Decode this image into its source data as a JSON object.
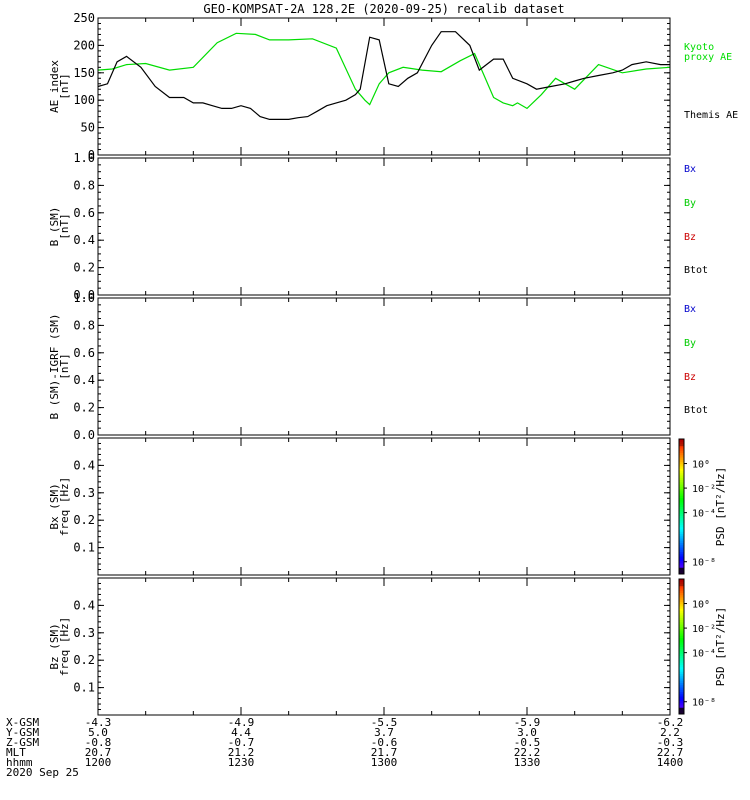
{
  "title": "GEO-KOMPSAT-2A 128.2E (2020-09-25) recalib dataset",
  "colors": {
    "bx": "#0000cc",
    "by": "#00cc00",
    "bz": "#cc0000",
    "btot": "#000000",
    "kyoto": "#00dd00",
    "themis": "#000000"
  },
  "chart_data": [
    {
      "type": "line",
      "ylabel": [
        "AE index",
        "[nT]"
      ],
      "ylim": [
        0,
        250
      ],
      "yticks": [
        0,
        50,
        100,
        150,
        200,
        250
      ],
      "ytick_labels": [
        "0",
        "50",
        "100",
        "150",
        "200",
        "250"
      ],
      "xlim": [
        "12:00",
        "14:00"
      ],
      "legend": [
        "Kyoto",
        "proxy AE",
        "Themis AE"
      ],
      "series": [
        {
          "name": "Kyoto",
          "color": "#00dd00",
          "x": [
            "12:00",
            "12:03",
            "12:06",
            "12:10",
            "12:15",
            "12:20",
            "12:25",
            "12:29",
            "12:33",
            "12:36",
            "12:40",
            "12:45",
            "12:50",
            "12:54",
            "12:56",
            "12:57",
            "12:59",
            "13:01",
            "13:04",
            "13:08",
            "13:12",
            "13:16",
            "13:19",
            "13:21",
            "13:23",
            "13:25",
            "13:27",
            "13:28",
            "13:30",
            "13:33",
            "13:36",
            "13:38",
            "13:40",
            "13:45",
            "13:50",
            "13:55",
            "14:00"
          ],
          "y": [
            155,
            157,
            165,
            167,
            155,
            160,
            205,
            222,
            220,
            210,
            210,
            212,
            195,
            120,
            100,
            92,
            130,
            150,
            160,
            155,
            152,
            172,
            185,
            145,
            105,
            95,
            90,
            95,
            85,
            110,
            140,
            130,
            120,
            165,
            150,
            157,
            160
          ]
        },
        {
          "name": "Themis AE",
          "color": "#000000",
          "x": [
            "12:00",
            "12:02",
            "12:04",
            "12:06",
            "12:09",
            "12:12",
            "12:15",
            "12:18",
            "12:20",
            "12:22",
            "12:24",
            "12:26",
            "12:28",
            "12:30",
            "12:32",
            "12:34",
            "12:36",
            "12:38",
            "12:40",
            "12:42",
            "12:44",
            "12:46",
            "12:48",
            "12:50",
            "12:52",
            "12:54",
            "12:55",
            "12:57",
            "12:59",
            "13:01",
            "13:03",
            "13:05",
            "13:07",
            "13:10",
            "13:12",
            "13:15",
            "13:18",
            "13:20",
            "13:23",
            "13:25",
            "13:27",
            "13:30",
            "13:32",
            "13:35",
            "13:38",
            "13:40",
            "13:42",
            "13:45",
            "13:48",
            "13:50",
            "13:52",
            "13:55",
            "13:58",
            "14:00"
          ],
          "y": [
            125,
            130,
            170,
            180,
            160,
            125,
            105,
            105,
            95,
            95,
            90,
            85,
            85,
            90,
            85,
            70,
            65,
            65,
            65,
            68,
            70,
            80,
            90,
            95,
            100,
            110,
            120,
            215,
            210,
            130,
            125,
            140,
            150,
            200,
            225,
            225,
            200,
            155,
            175,
            175,
            140,
            130,
            120,
            125,
            130,
            135,
            140,
            145,
            150,
            155,
            165,
            170,
            165,
            165
          ]
        }
      ]
    },
    {
      "type": "line",
      "ylabel": [
        "B (SM)",
        "[nT]"
      ],
      "ylim": [
        0,
        1
      ],
      "yticks": [
        0,
        0.2,
        0.4,
        0.6,
        0.8,
        1.0
      ],
      "ytick_labels": [
        "0.0",
        "0.2",
        "0.4",
        "0.6",
        "0.8",
        "1.0"
      ],
      "legend": [
        "Bx",
        "By",
        "Bz",
        "Btot"
      ],
      "series": []
    },
    {
      "type": "line",
      "ylabel": [
        "B (SM)-IGRF (SM)",
        "[nT]"
      ],
      "ylim": [
        0,
        1
      ],
      "yticks": [
        0,
        0.2,
        0.4,
        0.6,
        0.8,
        1.0
      ],
      "ytick_labels": [
        "0.0",
        "0.2",
        "0.4",
        "0.6",
        "0.8",
        "1.0"
      ],
      "legend": [
        "Bx",
        "By",
        "Bz",
        "Btot"
      ],
      "series": []
    },
    {
      "type": "heatmap",
      "ylabel": [
        "Bx (SM)",
        "freq [Hz]"
      ],
      "ylim": [
        0,
        0.5
      ],
      "yticks": [
        0.1,
        0.2,
        0.3,
        0.4
      ],
      "ytick_labels": [
        "0.1",
        "0.2",
        "0.3",
        "0.4"
      ],
      "colorbar": {
        "label": "PSD [nT²/Hz]",
        "range_log10": [
          -9,
          2
        ],
        "ticks_log10": [
          0,
          -2,
          -4,
          -8
        ],
        "tick_labels": [
          "10⁰",
          "10⁻²",
          "10⁻⁴",
          "10⁻⁸"
        ]
      }
    },
    {
      "type": "heatmap",
      "ylabel": [
        "Bz (SM)",
        "freq [Hz]"
      ],
      "ylim": [
        0,
        0.5
      ],
      "yticks": [
        0.1,
        0.2,
        0.3,
        0.4
      ],
      "ytick_labels": [
        "0.1",
        "0.2",
        "0.3",
        "0.4"
      ],
      "colorbar": {
        "label": "PSD [nT²/Hz]",
        "range_log10": [
          -9,
          2
        ],
        "ticks_log10": [
          0,
          -2,
          -4,
          -8
        ],
        "tick_labels": [
          "10⁰",
          "10⁻²",
          "10⁻⁴",
          "10⁻⁸"
        ]
      }
    }
  ],
  "xaxis": {
    "tick_times": [
      "12:00",
      "12:30",
      "13:00",
      "13:30",
      "14:00"
    ],
    "rows": [
      {
        "label": "X-GSM",
        "values": [
          "-4.3",
          "-4.9",
          "-5.5",
          "-5.9",
          "-6.2"
        ]
      },
      {
        "label": "Y-GSM",
        "values": [
          "5.0",
          "4.4",
          "3.7",
          "3.0",
          "2.2"
        ]
      },
      {
        "label": "Z-GSM",
        "values": [
          "-0.8",
          "-0.7",
          "-0.6",
          "-0.5",
          "-0.3"
        ]
      },
      {
        "label": "MLT",
        "values": [
          "20.7",
          "21.2",
          "21.7",
          "22.2",
          "22.7"
        ]
      },
      {
        "label": "hhmm",
        "values": [
          "1200",
          "1230",
          "1300",
          "1330",
          "1400"
        ]
      }
    ],
    "date": "2020 Sep 25"
  }
}
